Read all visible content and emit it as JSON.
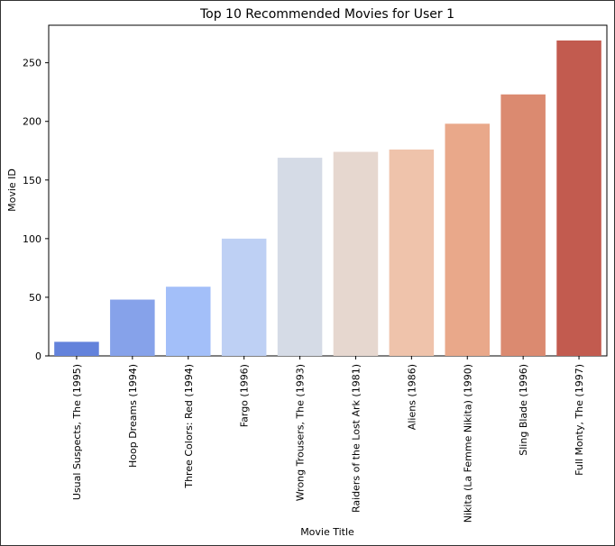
{
  "chart_data": {
    "type": "bar",
    "title": "Top 10 Recommended Movies for User 1",
    "xlabel": "Movie Title",
    "ylabel": "Movie ID",
    "categories": [
      "Usual Suspects, The (1995)",
      "Hoop Dreams (1994)",
      "Three Colors: Red (1994)",
      "Fargo (1996)",
      "Wrong Trousers, The (1993)",
      "Raiders of the Lost Ark (1981)",
      "Aliens (1986)",
      "Nikita (La Femme Nikita) (1990)",
      "Sling Blade (1996)",
      "Full Monty, The (1997)"
    ],
    "values": [
      12,
      48,
      59,
      100,
      169,
      174,
      176,
      198,
      223,
      269
    ],
    "ylim": [
      0,
      282
    ],
    "yticks": [
      0,
      50,
      100,
      150,
      200,
      250
    ],
    "grid": false,
    "colors": [
      "#6382db",
      "#86a2ea",
      "#a3bff9",
      "#bed0f4",
      "#d5dbe6",
      "#e6d7cf",
      "#efc3ab",
      "#e9a88a",
      "#db8a70",
      "#c25b4f"
    ]
  }
}
